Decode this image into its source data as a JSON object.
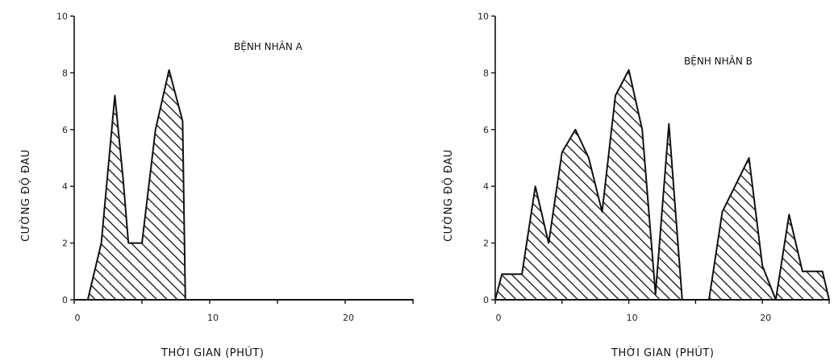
{
  "chart_data": [
    {
      "type": "area",
      "title": "BỆNH NHÂN A",
      "xlabel": "THỜI GIAN (PHÚT)",
      "ylabel": "CƯỜNG ĐỘ ĐAU",
      "xlim": [
        0,
        25
      ],
      "ylim": [
        0,
        10
      ],
      "xticks": [
        0,
        10,
        20
      ],
      "yticks": [
        0,
        2,
        4,
        6,
        8,
        10
      ],
      "points": [
        {
          "x": 0,
          "y": 0
        },
        {
          "x": 1,
          "y": 0
        },
        {
          "x": 2,
          "y": 2
        },
        {
          "x": 3,
          "y": 7.2
        },
        {
          "x": 3.6,
          "y": 4.3
        },
        {
          "x": 4,
          "y": 2
        },
        {
          "x": 5,
          "y": 2
        },
        {
          "x": 6,
          "y": 6
        },
        {
          "x": 7,
          "y": 8.1
        },
        {
          "x": 8,
          "y": 6.3
        },
        {
          "x": 8.2,
          "y": 0
        },
        {
          "x": 25,
          "y": 0
        }
      ]
    },
    {
      "type": "area",
      "title": "BỆNH NHÂN B",
      "xlabel": "THỜI GIAN (PHÚT)",
      "ylabel": "CƯỜNG ĐỘ ĐAU",
      "xlim": [
        0,
        25
      ],
      "ylim": [
        0,
        10
      ],
      "xticks": [
        0,
        10,
        20
      ],
      "yticks": [
        0,
        2,
        4,
        6,
        8,
        10
      ],
      "points": [
        {
          "x": 0,
          "y": 0
        },
        {
          "x": 0.5,
          "y": 0.9
        },
        {
          "x": 2,
          "y": 0.9
        },
        {
          "x": 3,
          "y": 4
        },
        {
          "x": 4,
          "y": 2
        },
        {
          "x": 5,
          "y": 5.2
        },
        {
          "x": 6,
          "y": 6
        },
        {
          "x": 7,
          "y": 5
        },
        {
          "x": 8,
          "y": 3.1
        },
        {
          "x": 9,
          "y": 7.2
        },
        {
          "x": 10,
          "y": 8.1
        },
        {
          "x": 11,
          "y": 6
        },
        {
          "x": 12,
          "y": 0.2
        },
        {
          "x": 13,
          "y": 6.2
        },
        {
          "x": 14,
          "y": 0
        },
        {
          "x": 16,
          "y": 0
        },
        {
          "x": 17,
          "y": 3.1
        },
        {
          "x": 19,
          "y": 5.0
        },
        {
          "x": 20,
          "y": 1.2
        },
        {
          "x": 21,
          "y": 0
        },
        {
          "x": 22,
          "y": 3
        },
        {
          "x": 23,
          "y": 1
        },
        {
          "x": 24.5,
          "y": 1
        },
        {
          "x": 25,
          "y": 0
        }
      ]
    }
  ]
}
